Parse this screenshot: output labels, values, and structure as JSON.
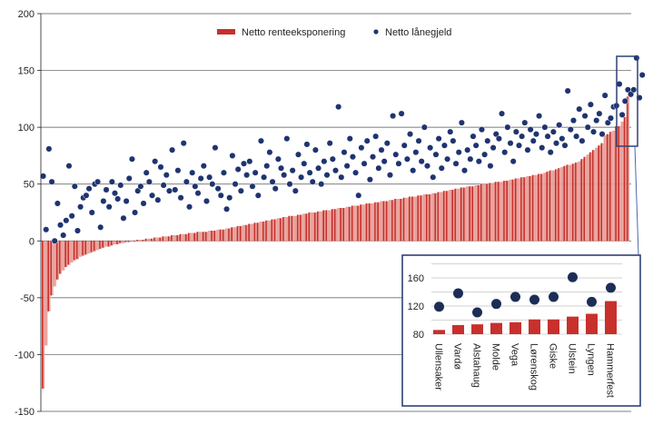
{
  "colors": {
    "bar": "#c8302c",
    "bar_light": "#e8a09a",
    "dot": "#1f3470",
    "inset_dot": "#1c2e55",
    "frame": "#2e4177",
    "grid": "#555555",
    "inset_grid": "#d9d9d9"
  },
  "chart_data": [
    {
      "type": "bar+scatter",
      "title": "",
      "xlabel": "",
      "ylabel": "",
      "ylim": [
        -150,
        200
      ],
      "yticks": [
        "200",
        "150",
        "100",
        "50",
        "0",
        "-50",
        "-100",
        "-150"
      ],
      "ytick_values": [
        200,
        150,
        100,
        50,
        0,
        -50,
        -100,
        -150
      ],
      "grid": true,
      "legend": {
        "placement": "top-center",
        "entries": [
          {
            "label": "Netto renteeksponering",
            "marker": "bar"
          },
          {
            "label": "Netto lånegjeld",
            "marker": "dot"
          }
        ]
      },
      "series": [
        {
          "name": "Netto renteeksponering",
          "type": "bar",
          "values": [
            -130,
            -92,
            -62,
            -48,
            -40,
            -34,
            -29,
            -26,
            -23,
            -21,
            -19,
            -17,
            -16,
            -14,
            -13,
            -12,
            -11,
            -10,
            -9,
            -8,
            -7,
            -6,
            -5,
            -5,
            -4,
            -3,
            -3,
            -2,
            -2,
            -1,
            -1,
            0,
            0,
            1,
            1,
            1,
            2,
            2,
            2,
            3,
            3,
            3,
            4,
            4,
            4,
            5,
            5,
            5,
            6,
            6,
            6,
            7,
            7,
            7,
            8,
            8,
            8,
            8,
            9,
            9,
            9,
            10,
            10,
            10,
            11,
            11,
            12,
            12,
            13,
            13,
            14,
            14,
            15,
            15,
            16,
            16,
            17,
            17,
            18,
            18,
            19,
            19,
            20,
            20,
            21,
            21,
            22,
            22,
            22,
            23,
            23,
            24,
            24,
            25,
            25,
            25,
            26,
            26,
            27,
            27,
            27,
            28,
            28,
            29,
            29,
            29,
            30,
            30,
            31,
            31,
            31,
            32,
            32,
            33,
            33,
            33,
            34,
            34,
            35,
            35,
            35,
            36,
            36,
            37,
            37,
            37,
            38,
            38,
            39,
            39,
            39,
            40,
            40,
            41,
            41,
            41,
            42,
            42,
            43,
            43,
            44,
            44,
            45,
            45,
            46,
            46,
            47,
            47,
            48,
            48,
            48,
            49,
            49,
            50,
            50,
            50,
            51,
            51,
            52,
            52,
            52,
            53,
            53,
            54,
            54,
            55,
            55,
            56,
            56,
            57,
            57,
            58,
            58,
            59,
            59,
            60,
            61,
            62,
            62,
            63,
            64,
            65,
            66,
            67,
            67,
            68,
            69,
            70,
            72,
            74,
            76,
            78,
            80,
            82,
            84,
            86,
            93,
            94,
            96,
            97,
            101,
            101,
            105,
            109,
            127
          ]
        },
        {
          "name": "Netto lånegjeld",
          "type": "scatter",
          "values": [
            57,
            10,
            81,
            52,
            0,
            33,
            14,
            5,
            18,
            66,
            22,
            48,
            9,
            30,
            38,
            40,
            46,
            25,
            50,
            52,
            12,
            35,
            45,
            30,
            52,
            42,
            37,
            49,
            20,
            35,
            55,
            72,
            25,
            44,
            48,
            33,
            60,
            52,
            40,
            70,
            36,
            65,
            49,
            58,
            44,
            80,
            45,
            62,
            38,
            86,
            52,
            30,
            60,
            48,
            42,
            55,
            66,
            35,
            56,
            50,
            82,
            46,
            40,
            60,
            28,
            38,
            75,
            50,
            63,
            44,
            68,
            58,
            70,
            48,
            60,
            40,
            88,
            56,
            66,
            78,
            52,
            46,
            72,
            64,
            58,
            90,
            50,
            62,
            44,
            76,
            56,
            68,
            85,
            60,
            52,
            80,
            64,
            50,
            70,
            58,
            86,
            72,
            62,
            118,
            56,
            78,
            66,
            90,
            74,
            60,
            40,
            82,
            68,
            88,
            54,
            74,
            92,
            64,
            80,
            70,
            86,
            58,
            110,
            76,
            68,
            112,
            84,
            72,
            94,
            62,
            78,
            88,
            70,
            100,
            66,
            82,
            56,
            76,
            90,
            64,
            84,
            72,
            96,
            88,
            68,
            78,
            104,
            62,
            80,
            72,
            92,
            84,
            70,
            98,
            76,
            88,
            66,
            82,
            94,
            90,
            112,
            78,
            100,
            86,
            70,
            96,
            84,
            92,
            104,
            80,
            98,
            88,
            94,
            110,
            82,
            100,
            92,
            78,
            96,
            86,
            102,
            90,
            84,
            132,
            98,
            106,
            92,
            116,
            88,
            110,
            100,
            120,
            96,
            106,
            112,
            94,
            128,
            104,
            108,
            118,
            119,
            138,
            111,
            123,
            133,
            129,
            133,
            161,
            126,
            146
          ]
        }
      ]
    },
    {
      "type": "bar+scatter",
      "title": "",
      "ylim": [
        70,
        185
      ],
      "yticks": [
        "160",
        "120",
        "80"
      ],
      "ytick_values": [
        160,
        120,
        80
      ],
      "grid": true,
      "categories": [
        "Ullensaker",
        "Vardø",
        "Alstahaug",
        "Molde",
        "Vega",
        "Lørenskog",
        "Giske",
        "Ulstein",
        "Lyngen",
        "Hammerfest"
      ],
      "series": [
        {
          "name": "Netto renteeksponering",
          "type": "bar",
          "values": [
            86,
            93,
            94,
            96,
            97,
            101,
            101,
            105,
            109,
            127
          ]
        },
        {
          "name": "Netto lånegjeld",
          "type": "scatter",
          "values": [
            119,
            138,
            111,
            123,
            133,
            129,
            133,
            161,
            126,
            146
          ]
        }
      ]
    }
  ]
}
